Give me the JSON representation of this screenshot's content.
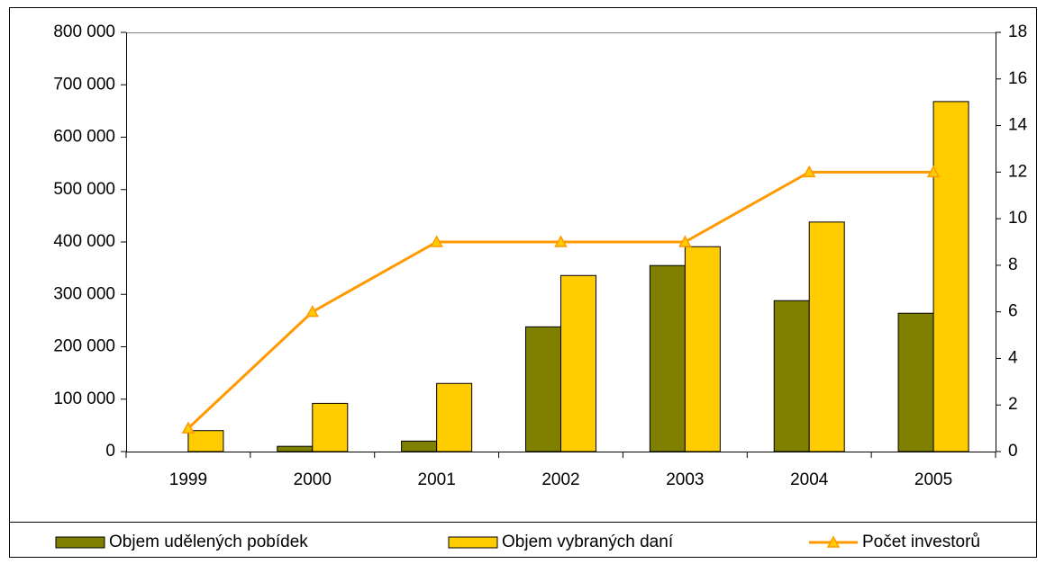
{
  "chart_data": {
    "type": "bar",
    "categories": [
      "1999",
      "2000",
      "2001",
      "2002",
      "2003",
      "2004",
      "2005"
    ],
    "series": [
      {
        "name": "Objem udělených pobídek",
        "type": "bar",
        "color": "#808000",
        "values": [
          0,
          10000,
          20000,
          238000,
          355000,
          288000,
          264000
        ]
      },
      {
        "name": "Objem vybraných daní",
        "type": "bar",
        "color": "#ffcc00",
        "values": [
          40000,
          92000,
          130000,
          336000,
          391000,
          438000,
          668000
        ]
      },
      {
        "name": "Počet investorů",
        "type": "line",
        "axis": "y2",
        "color": "#ff9900",
        "marker_color": "#ffcc00",
        "values": [
          1,
          6,
          9,
          9,
          9,
          12,
          12
        ]
      }
    ],
    "ylim": [
      0,
      800000
    ],
    "yticks": [
      0,
      {
        "value": 100000,
        "label": "100 000"
      },
      {
        "value": 200000,
        "label": "200 000"
      },
      {
        "value": 300000,
        "label": "300 000"
      },
      {
        "value": 400000,
        "label": "400 000"
      },
      {
        "value": 500000,
        "label": "500 000"
      },
      {
        "value": 600000,
        "label": "600 000"
      },
      {
        "value": 700000,
        "label": "700 000"
      },
      {
        "value": 800000,
        "label": "800 000"
      }
    ],
    "y2lim": [
      0,
      18
    ],
    "y2ticks": [
      0,
      2,
      4,
      6,
      8,
      10,
      12,
      14,
      16,
      18
    ],
    "legend": "bottom"
  }
}
